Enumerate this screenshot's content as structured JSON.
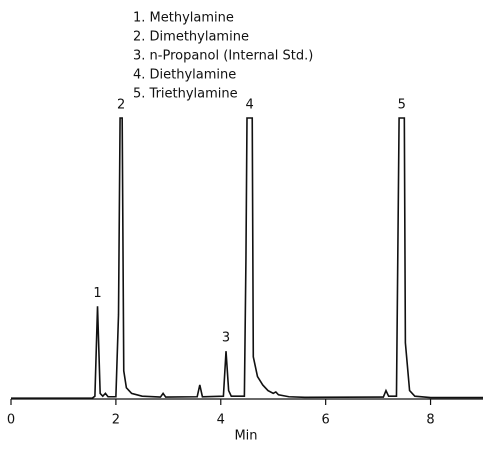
{
  "chart_data": {
    "type": "line",
    "legend_items": [
      "1. Methylamine",
      "2. Dimethylamine",
      "3. n-Propanol (Internal Std.)",
      "4. Diethylamine",
      "5. Triethylamine"
    ],
    "xlabel": "Min",
    "xlim": [
      0,
      9
    ],
    "xticks": [
      0,
      2,
      4,
      6,
      8
    ],
    "ylim": [
      0,
      100
    ],
    "color": "#111111",
    "x": [
      0,
      1.55,
      1.6,
      1.65,
      1.7,
      1.75,
      1.8,
      1.85,
      2.0,
      2.05,
      2.08,
      2.12,
      2.15,
      2.2,
      2.3,
      2.5,
      2.85,
      2.9,
      2.95,
      3.55,
      3.6,
      3.65,
      4.05,
      4.1,
      4.15,
      4.2,
      4.45,
      4.48,
      4.5,
      4.6,
      4.62,
      4.7,
      4.8,
      4.9,
      5.0,
      5.05,
      5.1,
      5.3,
      5.6,
      7.1,
      7.15,
      7.2,
      7.35,
      7.38,
      7.4,
      7.5,
      7.52,
      7.6,
      7.7,
      8.0,
      9.0
    ],
    "values": [
      0.3,
      0.3,
      1,
      33,
      2,
      1,
      2,
      0.8,
      0.8,
      30,
      100,
      100,
      10,
      4,
      2,
      1,
      0.7,
      2,
      0.7,
      0.8,
      5,
      0.8,
      1,
      17,
      3,
      1,
      1,
      50,
      100,
      100,
      15,
      8,
      5,
      3,
      2,
      2.5,
      1.5,
      0.8,
      0.6,
      0.7,
      3,
      1,
      1,
      60,
      100,
      100,
      20,
      3,
      1,
      0.5,
      0.5
    ],
    "annotations": [
      {
        "text": "1",
        "x": 1.65,
        "y": 33
      },
      {
        "text": "2",
        "x": 2.1,
        "y": 100
      },
      {
        "text": "3",
        "x": 4.1,
        "y": 17
      },
      {
        "text": "4",
        "x": 4.55,
        "y": 100
      },
      {
        "text": "5",
        "x": 7.45,
        "y": 100
      }
    ]
  }
}
